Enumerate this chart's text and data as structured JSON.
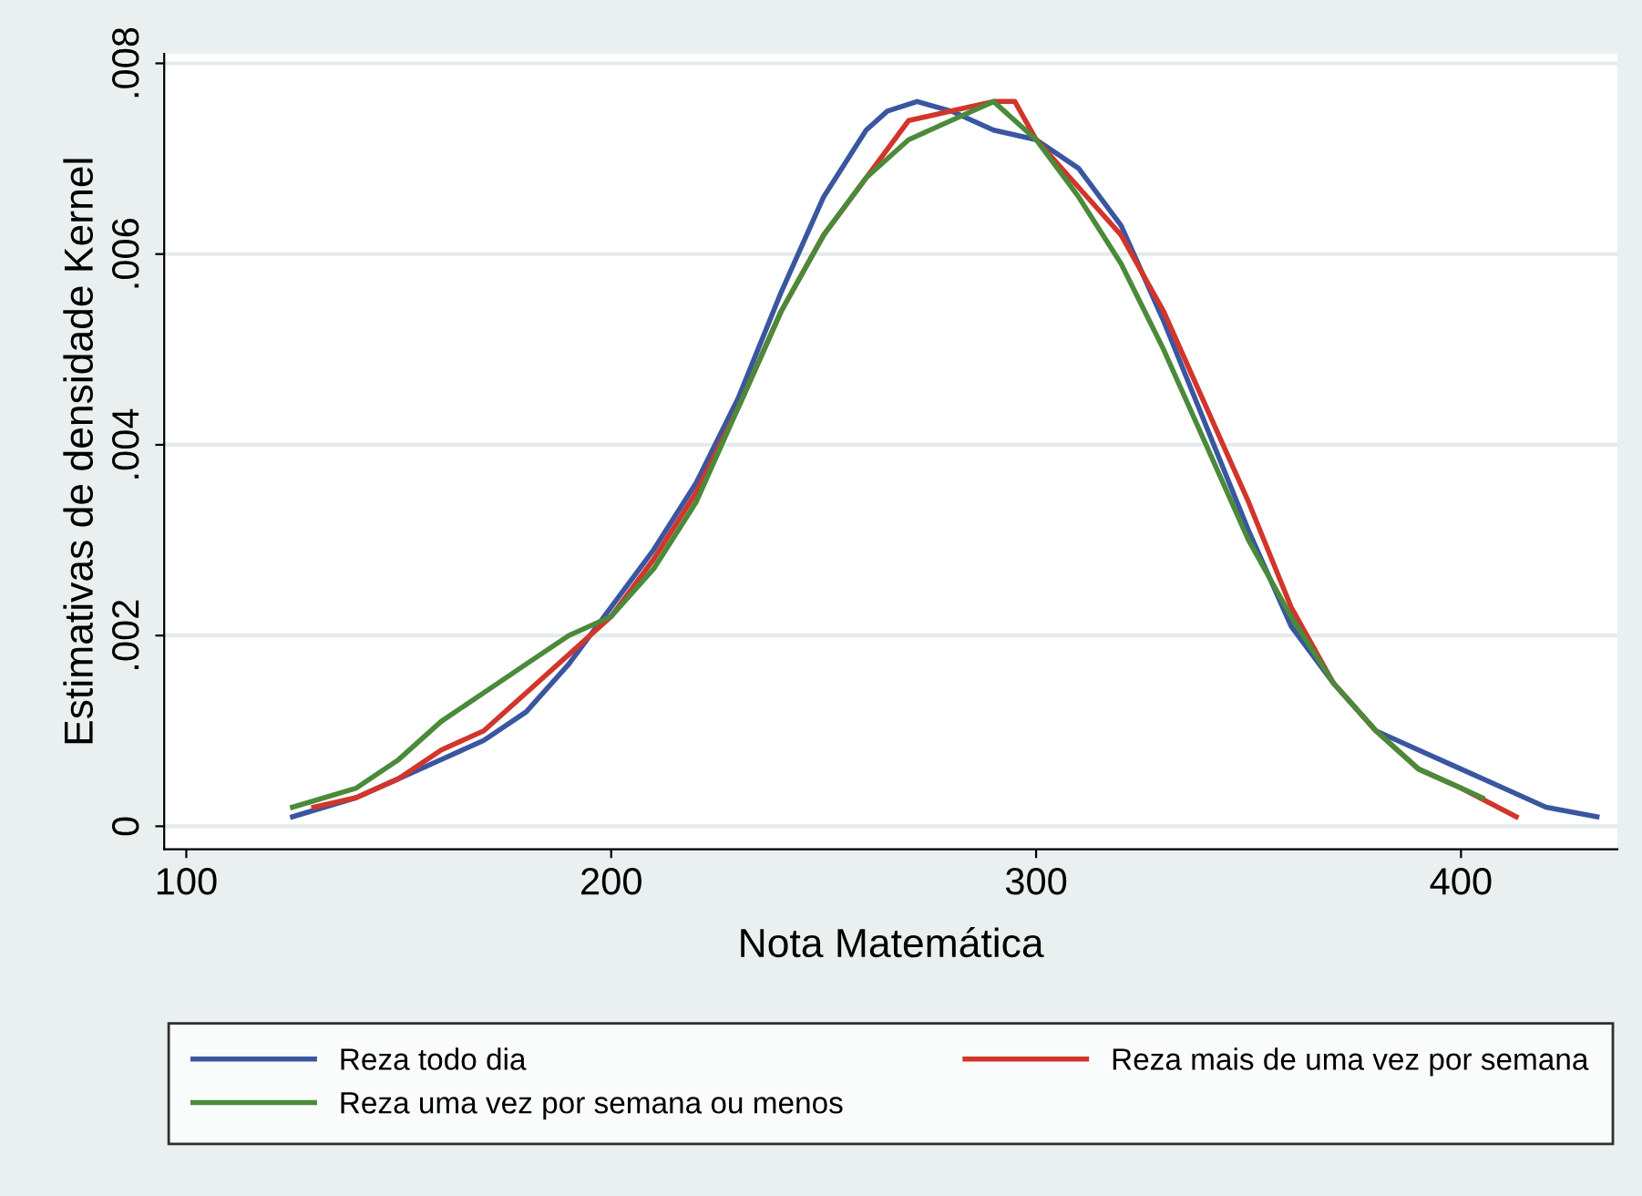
{
  "chart_data": {
    "type": "line",
    "xlabel": "Nota Matemática",
    "ylabel": "Estimativas de densidade Kernel",
    "xlim": [
      94.8,
      436.8
    ],
    "ylim": [
      -0.00024,
      0.0081
    ],
    "xticks": [
      100,
      200,
      300,
      400
    ],
    "yticks": [
      0,
      {
        "value": 0.002,
        "label": ".002"
      },
      {
        "value": 0.004,
        "label": ".004"
      },
      {
        "value": 0.006,
        "label": ".006"
      },
      {
        "value": 0.008,
        "label": ".008"
      }
    ],
    "grid": "y",
    "legend": "bottom",
    "marker": "none",
    "line_style": "solid",
    "series": [
      {
        "name": "Reza todo dia",
        "color": "#3a56a0",
        "x": [
          125,
          140,
          150,
          160,
          170,
          180,
          190,
          200,
          210,
          220,
          230,
          240,
          250,
          260,
          265,
          272,
          280,
          290,
          300,
          310,
          320,
          330,
          340,
          350,
          360,
          370,
          380,
          390,
          400,
          410,
          420,
          432
        ],
        "values": [
          0.0001,
          0.0003,
          0.0005,
          0.0007,
          0.0009,
          0.0012,
          0.0017,
          0.0023,
          0.0029,
          0.0036,
          0.0045,
          0.0056,
          0.0066,
          0.0073,
          0.0075,
          0.0076,
          0.0075,
          0.0073,
          0.0072,
          0.0069,
          0.0063,
          0.0053,
          0.0042,
          0.0031,
          0.0021,
          0.0015,
          0.001,
          0.0008,
          0.0006,
          0.0004,
          0.0002,
          0.0001
        ]
      },
      {
        "name": "Reza mais de uma vez por semana",
        "color": "#d2352b",
        "x": [
          130,
          140,
          150,
          160,
          170,
          180,
          190,
          200,
          210,
          220,
          230,
          240,
          250,
          260,
          270,
          280,
          290,
          295,
          300,
          310,
          320,
          330,
          340,
          350,
          360,
          370,
          380,
          390,
          400,
          413
        ],
        "values": [
          0.0002,
          0.0003,
          0.0005,
          0.0008,
          0.001,
          0.0014,
          0.0018,
          0.0022,
          0.0028,
          0.0035,
          0.0044,
          0.0054,
          0.0062,
          0.0068,
          0.0074,
          0.0075,
          0.0076,
          0.0076,
          0.0072,
          0.0067,
          0.0062,
          0.0054,
          0.0044,
          0.0034,
          0.0023,
          0.0015,
          0.001,
          0.0006,
          0.0004,
          0.0001
        ]
      },
      {
        "name": "Reza uma vez por semana ou menos",
        "color": "#4a8a3a",
        "x": [
          125,
          140,
          150,
          160,
          170,
          180,
          190,
          200,
          210,
          220,
          230,
          240,
          250,
          260,
          270,
          280,
          290,
          300,
          310,
          320,
          330,
          340,
          350,
          360,
          370,
          380,
          390,
          400,
          405
        ],
        "values": [
          0.0002,
          0.0004,
          0.0007,
          0.0011,
          0.0014,
          0.0017,
          0.002,
          0.0022,
          0.0027,
          0.0034,
          0.0044,
          0.0054,
          0.0062,
          0.0068,
          0.0072,
          0.0074,
          0.0076,
          0.0072,
          0.0066,
          0.0059,
          0.005,
          0.004,
          0.003,
          0.0022,
          0.0015,
          0.001,
          0.0006,
          0.0004,
          0.0003
        ]
      }
    ]
  }
}
